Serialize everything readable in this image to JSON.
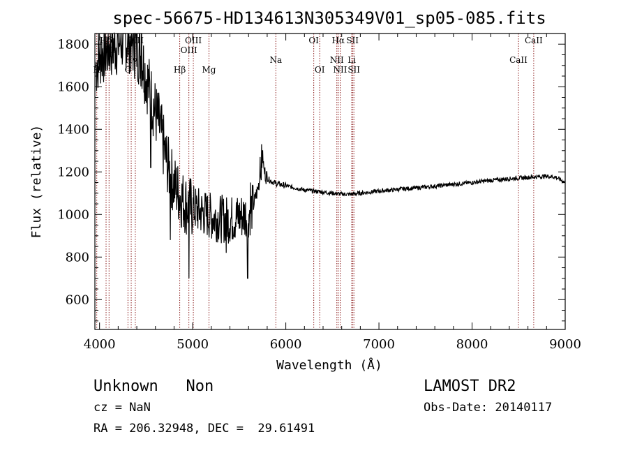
{
  "chart_data": {
    "type": "line",
    "title": "spec-56675-HD134613N305349V01_sp05-085.fits",
    "xlabel": "Wavelength (Å)",
    "ylabel": "Flux (relative)",
    "xlim": [
      3950,
      9000
    ],
    "ylim": [
      460,
      1850
    ],
    "x_ticks": [
      4000,
      5000,
      6000,
      7000,
      8000,
      9000
    ],
    "y_ticks": [
      600,
      800,
      1000,
      1200,
      1400,
      1600,
      1800
    ],
    "grid": false,
    "spectrum_anchors": [
      [
        3960,
        1690
      ],
      [
        3990,
        1740
      ],
      [
        4030,
        1760
      ],
      [
        4080,
        1780
      ],
      [
        4150,
        1795
      ],
      [
        4210,
        1805
      ],
      [
        4250,
        1825
      ],
      [
        4300,
        1830
      ],
      [
        4350,
        1800
      ],
      [
        4400,
        1780
      ],
      [
        4450,
        1740
      ],
      [
        4500,
        1650
      ],
      [
        4550,
        1560
      ],
      [
        4600,
        1480
      ],
      [
        4650,
        1400
      ],
      [
        4700,
        1290
      ],
      [
        4750,
        1200
      ],
      [
        4800,
        1140
      ],
      [
        4850,
        1100
      ],
      [
        4900,
        1060
      ],
      [
        4950,
        1040
      ],
      [
        5000,
        1030
      ],
      [
        5100,
        1010
      ],
      [
        5200,
        990
      ],
      [
        5300,
        980
      ],
      [
        5400,
        975
      ],
      [
        5500,
        990
      ],
      [
        5600,
        1000
      ],
      [
        5650,
        1040
      ],
      [
        5700,
        1120
      ],
      [
        5740,
        1210
      ],
      [
        5770,
        1200
      ],
      [
        5800,
        1170
      ],
      [
        5850,
        1155
      ],
      [
        5900,
        1145
      ],
      [
        6000,
        1135
      ],
      [
        6100,
        1125
      ],
      [
        6200,
        1115
      ],
      [
        6300,
        1110
      ],
      [
        6400,
        1105
      ],
      [
        6500,
        1100
      ],
      [
        6600,
        1096
      ],
      [
        6700,
        1095
      ],
      [
        6800,
        1100
      ],
      [
        6900,
        1105
      ],
      [
        7000,
        1110
      ],
      [
        7200,
        1118
      ],
      [
        7400,
        1125
      ],
      [
        7600,
        1133
      ],
      [
        7800,
        1142
      ],
      [
        8000,
        1150
      ],
      [
        8200,
        1160
      ],
      [
        8400,
        1168
      ],
      [
        8600,
        1174
      ],
      [
        8800,
        1180
      ],
      [
        8900,
        1175
      ],
      [
        9000,
        1150
      ]
    ],
    "features": [
      [
        5740,
        1330
      ],
      [
        5750,
        1300
      ],
      [
        5760,
        1250
      ],
      [
        5725,
        1270
      ],
      [
        5590,
        700
      ],
      [
        5620,
        1150
      ],
      [
        4960,
        700
      ],
      [
        4760,
        880
      ],
      [
        4550,
        1220
      ],
      [
        4370,
        1850
      ],
      [
        4450,
        1850
      ],
      [
        5360,
        820
      ]
    ],
    "line_markers": [
      {
        "wl": 3970,
        "label": "H",
        "row": 3
      },
      {
        "wl": 4070,
        "label": "Hδ",
        "row": 0
      },
      {
        "wl": 4102,
        "label": "SII",
        "row": 1
      },
      {
        "wl": 4305,
        "label": "G",
        "row": 3
      },
      {
        "wl": 4340,
        "label": "Hγ",
        "row": 2
      },
      {
        "wl": 4384,
        "label": "OIII",
        "row": 0
      },
      {
        "wl": 4861,
        "label": "Hβ",
        "row": 3
      },
      {
        "wl": 4959,
        "label": "OIII",
        "row": 1
      },
      {
        "wl": 5007,
        "label": "OIII",
        "row": 0
      },
      {
        "wl": 5175,
        "label": "Mg",
        "row": 3
      },
      {
        "wl": 5893,
        "label": "Na",
        "row": 2
      },
      {
        "wl": 6300,
        "label": "OI",
        "row": 0
      },
      {
        "wl": 6364,
        "label": "OI",
        "row": 3
      },
      {
        "wl": 6548,
        "label": "NII",
        "row": 2
      },
      {
        "wl": 6563,
        "label": "Hα",
        "row": 0
      },
      {
        "wl": 6584,
        "label": "NII",
        "row": 3
      },
      {
        "wl": 6708,
        "label": "Li",
        "row": 2
      },
      {
        "wl": 6716,
        "label": "SII",
        "row": 0
      },
      {
        "wl": 6731,
        "label": "SII",
        "row": 3
      },
      {
        "wl": 8498,
        "label": "CaII",
        "row": 2
      },
      {
        "wl": 8662,
        "label": "CaII",
        "row": 0
      }
    ]
  },
  "info": {
    "left_line1": "Unknown   Non",
    "left_line2": "cz = NaN",
    "left_line3": "RA = 206.32948, DEC =  29.61491",
    "right_line1": "LAMOST DR2",
    "right_line2": "Obs-Date: 20140117"
  },
  "colors": {
    "spectrum": "#000000",
    "marker_lines": "#8b1a1a",
    "axes": "#000000"
  }
}
